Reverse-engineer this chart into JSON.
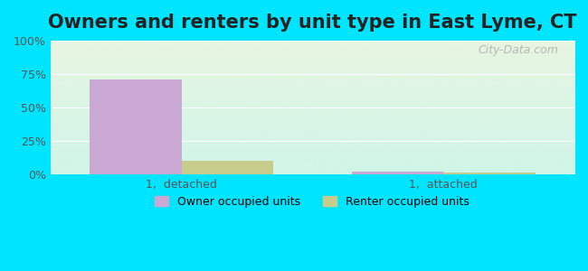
{
  "title": "Owners and renters by unit type in East Lyme, CT",
  "categories": [
    "1,  detached",
    "1,  attached"
  ],
  "owner_values": [
    71,
    2
  ],
  "renter_values": [
    10,
    1.5
  ],
  "owner_color": "#c9a8d4",
  "renter_color": "#c8cc8a",
  "bar_width": 0.35,
  "ylim": [
    0,
    100
  ],
  "yticks": [
    0,
    25,
    50,
    75,
    100
  ],
  "ytick_labels": [
    "0%",
    "25%",
    "50%",
    "75%",
    "100%"
  ],
  "legend_owner": "Owner occupied units",
  "legend_renter": "Renter occupied units",
  "bg_outer": "#00e5ff",
  "bg_plot_top": "#e8f5e2",
  "bg_plot_bottom": "#d0f5e8",
  "watermark": "City-Data.com",
  "title_fontsize": 15,
  "tick_fontsize": 9,
  "legend_fontsize": 9
}
